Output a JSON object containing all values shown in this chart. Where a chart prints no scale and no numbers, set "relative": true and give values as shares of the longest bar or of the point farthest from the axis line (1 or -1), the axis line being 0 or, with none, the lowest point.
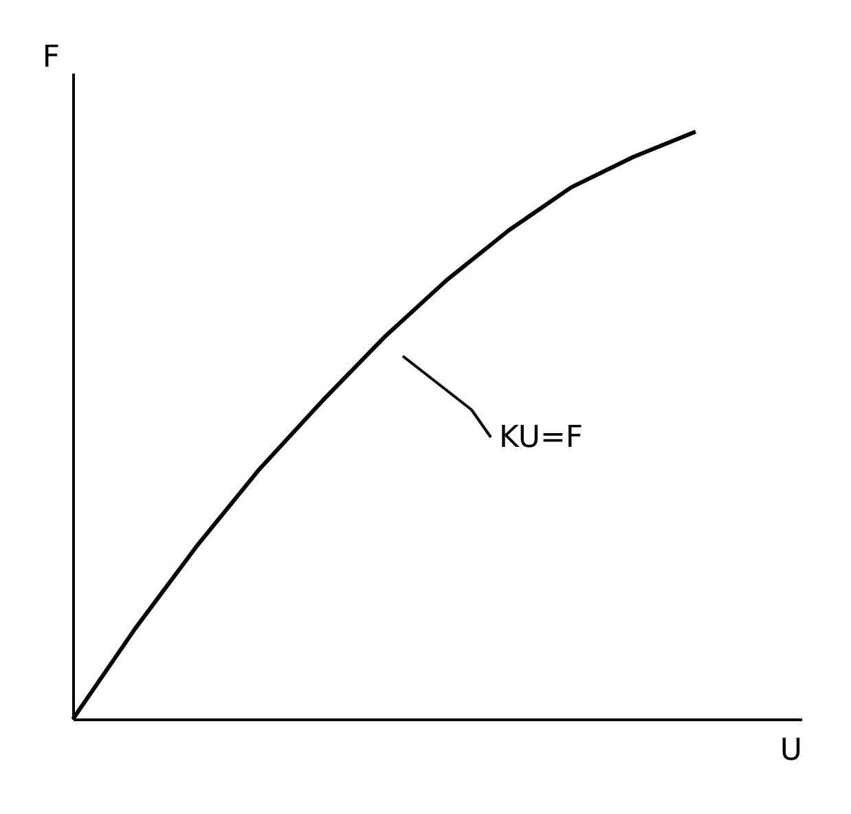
{
  "chart_data": {
    "type": "line",
    "relative": true,
    "xlabel": "U",
    "ylabel": "F",
    "categories": [
      null,
      null,
      null,
      null,
      null,
      null,
      null,
      null,
      null,
      null,
      null
    ],
    "series": [
      {
        "color": "#000000",
        "values": [
          0,
          0.154,
          0.296,
          0.426,
          0.541,
          0.65,
          0.747,
          0.832,
          0.905,
          0.957,
          1.0
        ]
      }
    ],
    "annotations": [
      "KU=F"
    ],
    "grid": false,
    "marker": "none",
    "line_style": "solid"
  }
}
